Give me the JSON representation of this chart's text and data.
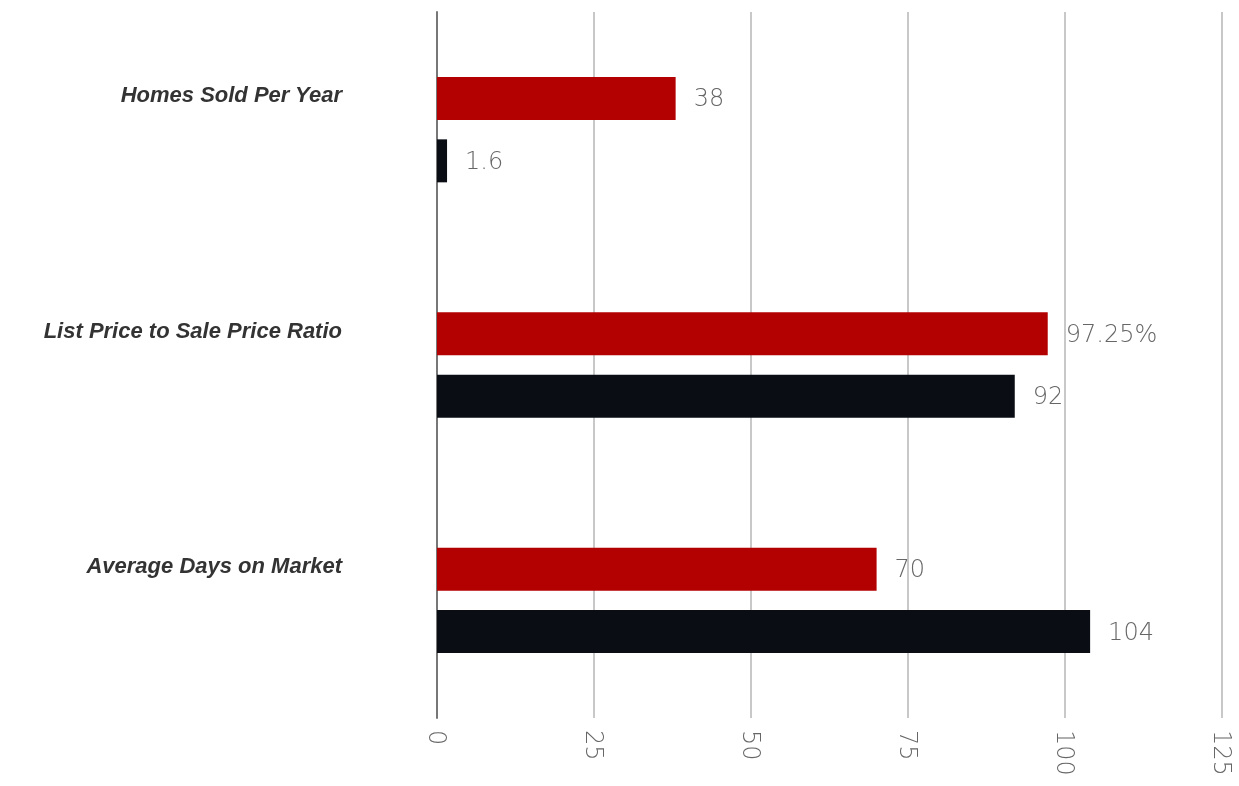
{
  "chart_data": {
    "type": "bar",
    "orientation": "horizontal",
    "categories": [
      "Homes Sold Per Year",
      "List Price to Sale Price Ratio",
      "Average Days on Market"
    ],
    "series": [
      {
        "color": "#b30000",
        "values": [
          38,
          97.25,
          70
        ],
        "value_labels": [
          "38",
          "97.25%",
          "70"
        ]
      },
      {
        "color": "#0a0e14",
        "values": [
          1.6,
          92,
          104
        ],
        "value_labels": [
          "1.6",
          "92",
          "104"
        ]
      }
    ],
    "xlim": [
      0,
      125
    ],
    "xticks": [
      0,
      25,
      50,
      75,
      100,
      125
    ],
    "grid": "x"
  }
}
